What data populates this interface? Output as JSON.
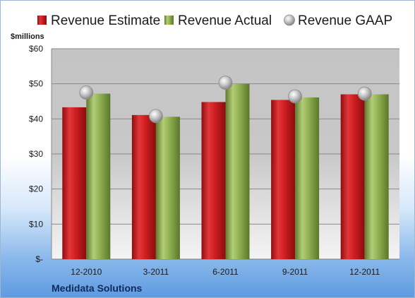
{
  "chart_data": {
    "type": "bar",
    "title": "",
    "unit_label": "$millions",
    "company": "Medidata Solutions",
    "categories": [
      "12-2010",
      "3-2011",
      "6-2011",
      "9-2011",
      "12-2011"
    ],
    "series": [
      {
        "name": "Revenue Estimate",
        "kind": "bar",
        "color": "#cc1f1f",
        "values": [
          43.3,
          41.1,
          44.8,
          45.4,
          47.0
        ]
      },
      {
        "name": "Revenue Actual",
        "kind": "bar",
        "color": "#8caa4e",
        "values": [
          47.2,
          40.6,
          50.0,
          46.1,
          47.0
        ]
      },
      {
        "name": "Revenue GAAP",
        "kind": "marker",
        "color": "#b8b8b8",
        "values": [
          47.5,
          40.8,
          50.3,
          46.4,
          47.2
        ]
      }
    ],
    "ylim": [
      0,
      60
    ],
    "yticks": [
      0,
      10,
      20,
      30,
      40,
      50,
      60
    ],
    "ytick_labels": [
      "$-",
      "$10",
      "$20",
      "$30",
      "$40",
      "$50",
      "$60"
    ],
    "grid": true,
    "legend_position": "top"
  }
}
